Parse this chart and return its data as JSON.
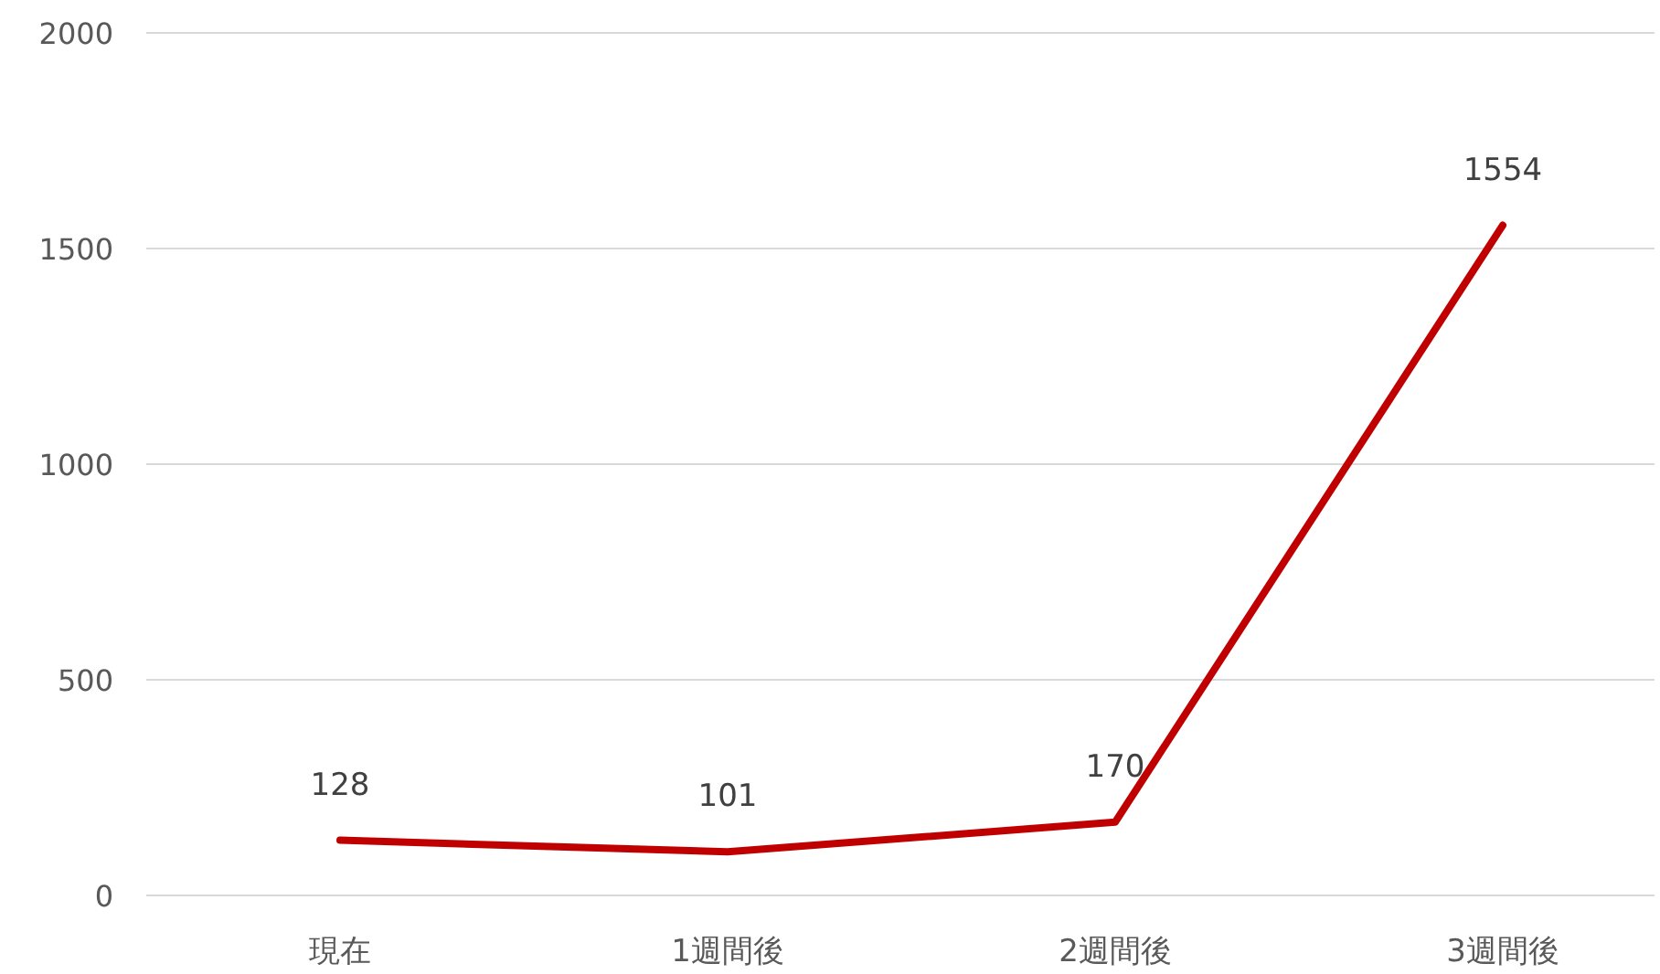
{
  "chart_data": {
    "type": "line",
    "categories": [
      "現在",
      "1週間後",
      "2週間後",
      "3週間後"
    ],
    "values": [
      128,
      101,
      170,
      1554
    ],
    "color": "#c00000",
    "ylim": [
      0,
      2000
    ],
    "yticks": [
      0,
      500,
      1000,
      1500,
      2000
    ],
    "grid": "y",
    "data_labels": true,
    "marker": "none",
    "line_style": "solid"
  }
}
